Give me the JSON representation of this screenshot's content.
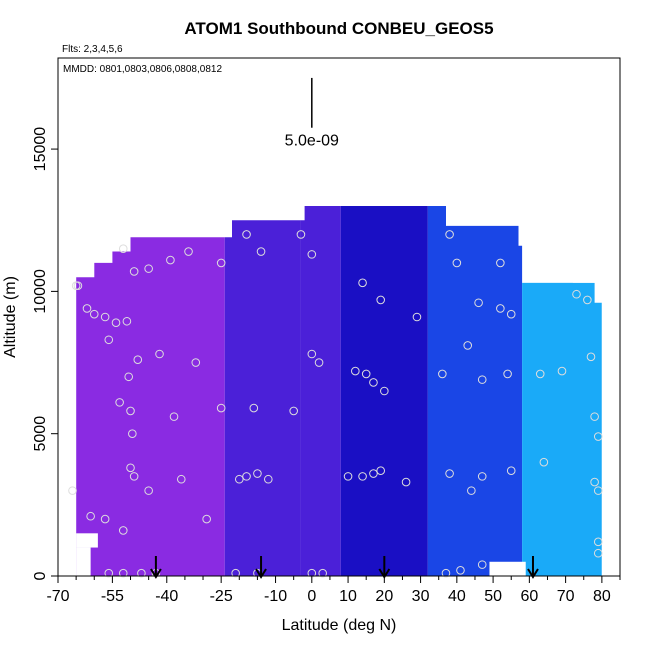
{
  "chart_data": {
    "type": "heatmap",
    "title": "ATOM1 Southbound CONBEU_GEOS5",
    "flights_note": "Flts: 2,3,4,5,6",
    "dates_note": "MMDD: 0801,0803,0806,0808,0812",
    "xlabel": "Latitude (deg N)",
    "ylabel": "Altitude (m)",
    "xlim": [
      -70,
      85
    ],
    "ylim": [
      0,
      18200
    ],
    "x_major_ticks": [
      -70,
      -55,
      -40,
      -25,
      -10,
      0,
      10,
      20,
      30,
      40,
      50,
      60,
      70,
      80
    ],
    "x_tick_labels": [
      "-70",
      "-55",
      "-40",
      "-25",
      "-10",
      "0",
      "10",
      "20",
      "30",
      "40",
      "50",
      "60",
      "70",
      "80"
    ],
    "x_minor_ticks": [
      -65,
      -60,
      -50,
      -45,
      -35,
      -30,
      -20,
      -15,
      -5,
      5,
      15,
      25,
      35,
      45,
      55,
      65,
      75,
      85
    ],
    "y_ticks": [
      0,
      5000,
      10000,
      15000
    ],
    "y_tick_labels": [
      "0",
      "5000",
      "10000",
      "15000"
    ],
    "scale_bar": {
      "label": "5.0e-09",
      "x": 0,
      "y_bottom": 15750,
      "y_top": 17500
    },
    "colors": {
      "purple": "#8a2be2",
      "indigo": "#4b20d8",
      "navy": "#1a0fc4",
      "blue": "#1a46e6",
      "sky": "#1aaaf8",
      "marker": "#dddddd",
      "arrow": "#000000"
    },
    "field_outline": [
      [
        -65,
        0
      ],
      [
        -65,
        10500
      ],
      [
        -60,
        10500
      ],
      [
        -60,
        11000
      ],
      [
        -55,
        11000
      ],
      [
        -55,
        11400
      ],
      [
        -50,
        11400
      ],
      [
        -50,
        11900
      ],
      [
        -22,
        11900
      ],
      [
        -22,
        12500
      ],
      [
        -2,
        12500
      ],
      [
        -2,
        13000
      ],
      [
        37,
        13000
      ],
      [
        37,
        12300
      ],
      [
        57,
        12300
      ],
      [
        57,
        11600
      ],
      [
        65,
        11600
      ],
      [
        65,
        11000
      ],
      [
        72,
        11000
      ],
      [
        72,
        10300
      ],
      [
        78,
        10300
      ],
      [
        78,
        9600
      ],
      [
        80,
        9600
      ],
      [
        80,
        0
      ]
    ],
    "color_regions": [
      {
        "name": "purple",
        "x": [
          -65,
          -24
        ],
        "color": "purple"
      },
      {
        "name": "violet-indigo",
        "x": [
          -24,
          -3
        ],
        "color": "indigo"
      },
      {
        "name": "indigo",
        "x": [
          -3,
          8
        ],
        "color": "indigo"
      },
      {
        "name": "navy",
        "x": [
          8,
          32
        ],
        "color": "navy"
      },
      {
        "name": "blue",
        "x": [
          32,
          58
        ],
        "color": "blue"
      },
      {
        "name": "sky",
        "x": [
          58,
          80
        ],
        "color": "sky",
        "y": [
          0,
          10300
        ]
      }
    ],
    "excluded_boxes": [
      {
        "x": [
          -70,
          -61
        ],
        "y": [
          0,
          1000
        ]
      },
      {
        "x": [
          -70,
          -59
        ],
        "y": [
          1000,
          1500
        ]
      },
      {
        "x": [
          49,
          59
        ],
        "y": [
          0,
          500
        ]
      },
      {
        "x": [
          80,
          85
        ],
        "y": [
          0,
          18200
        ]
      }
    ],
    "sample_points": [
      [
        -65,
        10200
      ],
      [
        -64.5,
        10200
      ],
      [
        -62,
        9400
      ],
      [
        -60,
        9200
      ],
      [
        -57,
        9100
      ],
      [
        -54,
        8900
      ],
      [
        -51,
        8950
      ],
      [
        -56,
        8300
      ],
      [
        -50.5,
        7000
      ],
      [
        -48,
        7600
      ],
      [
        -42,
        7800
      ],
      [
        -32,
        7500
      ],
      [
        -49,
        10700
      ],
      [
        -52,
        11500
      ],
      [
        -45,
        10800
      ],
      [
        -39,
        11100
      ],
      [
        -34,
        11400
      ],
      [
        -25,
        11000
      ],
      [
        -18,
        12000
      ],
      [
        -14,
        11400
      ],
      [
        -53,
        6100
      ],
      [
        -50,
        5800
      ],
      [
        -49.5,
        5000
      ],
      [
        -38,
        5600
      ],
      [
        -25,
        5900
      ],
      [
        -16,
        5900
      ],
      [
        -5,
        5800
      ],
      [
        -50,
        3800
      ],
      [
        -49,
        3500
      ],
      [
        -45,
        3000
      ],
      [
        -36,
        3400
      ],
      [
        -29,
        2000
      ],
      [
        -20,
        3400
      ],
      [
        -18,
        3500
      ],
      [
        -15,
        3600
      ],
      [
        -12,
        3400
      ],
      [
        -66,
        3000
      ],
      [
        -61,
        2100
      ],
      [
        -57,
        2000
      ],
      [
        -52,
        1600
      ],
      [
        -56,
        100
      ],
      [
        -52,
        100
      ],
      [
        -47,
        100
      ],
      [
        -43,
        100
      ],
      [
        -21,
        100
      ],
      [
        -15,
        100
      ],
      [
        0,
        100
      ],
      [
        3,
        100
      ],
      [
        10,
        3500
      ],
      [
        14,
        3500
      ],
      [
        17,
        3600
      ],
      [
        19,
        3700
      ],
      [
        26,
        3300
      ],
      [
        38,
        3600
      ],
      [
        44,
        3000
      ],
      [
        47,
        3500
      ],
      [
        55,
        3700
      ],
      [
        64,
        4000
      ],
      [
        12,
        7200
      ],
      [
        15,
        7100
      ],
      [
        20,
        6500
      ],
      [
        17,
        6800
      ],
      [
        14,
        10300
      ],
      [
        19,
        9700
      ],
      [
        29,
        9100
      ],
      [
        0,
        7800
      ],
      [
        2,
        7500
      ],
      [
        0,
        11300
      ],
      [
        -3,
        12000
      ],
      [
        38,
        12000
      ],
      [
        40,
        11000
      ],
      [
        52,
        11000
      ],
      [
        46,
        9600
      ],
      [
        52,
        9400
      ],
      [
        55,
        9200
      ],
      [
        43,
        8100
      ],
      [
        36,
        7100
      ],
      [
        47,
        6900
      ],
      [
        54,
        7100
      ],
      [
        63,
        7100
      ],
      [
        69,
        7200
      ],
      [
        77,
        7700
      ],
      [
        73,
        9900
      ],
      [
        76,
        9700
      ],
      [
        78,
        5600
      ],
      [
        79,
        4900
      ],
      [
        78,
        3300
      ],
      [
        79,
        3000
      ],
      [
        79,
        1200
      ],
      [
        79,
        800
      ],
      [
        37,
        100
      ],
      [
        41,
        200
      ],
      [
        47,
        400
      ]
    ],
    "flight_arrows": [
      -43,
      -14,
      20,
      61
    ]
  }
}
